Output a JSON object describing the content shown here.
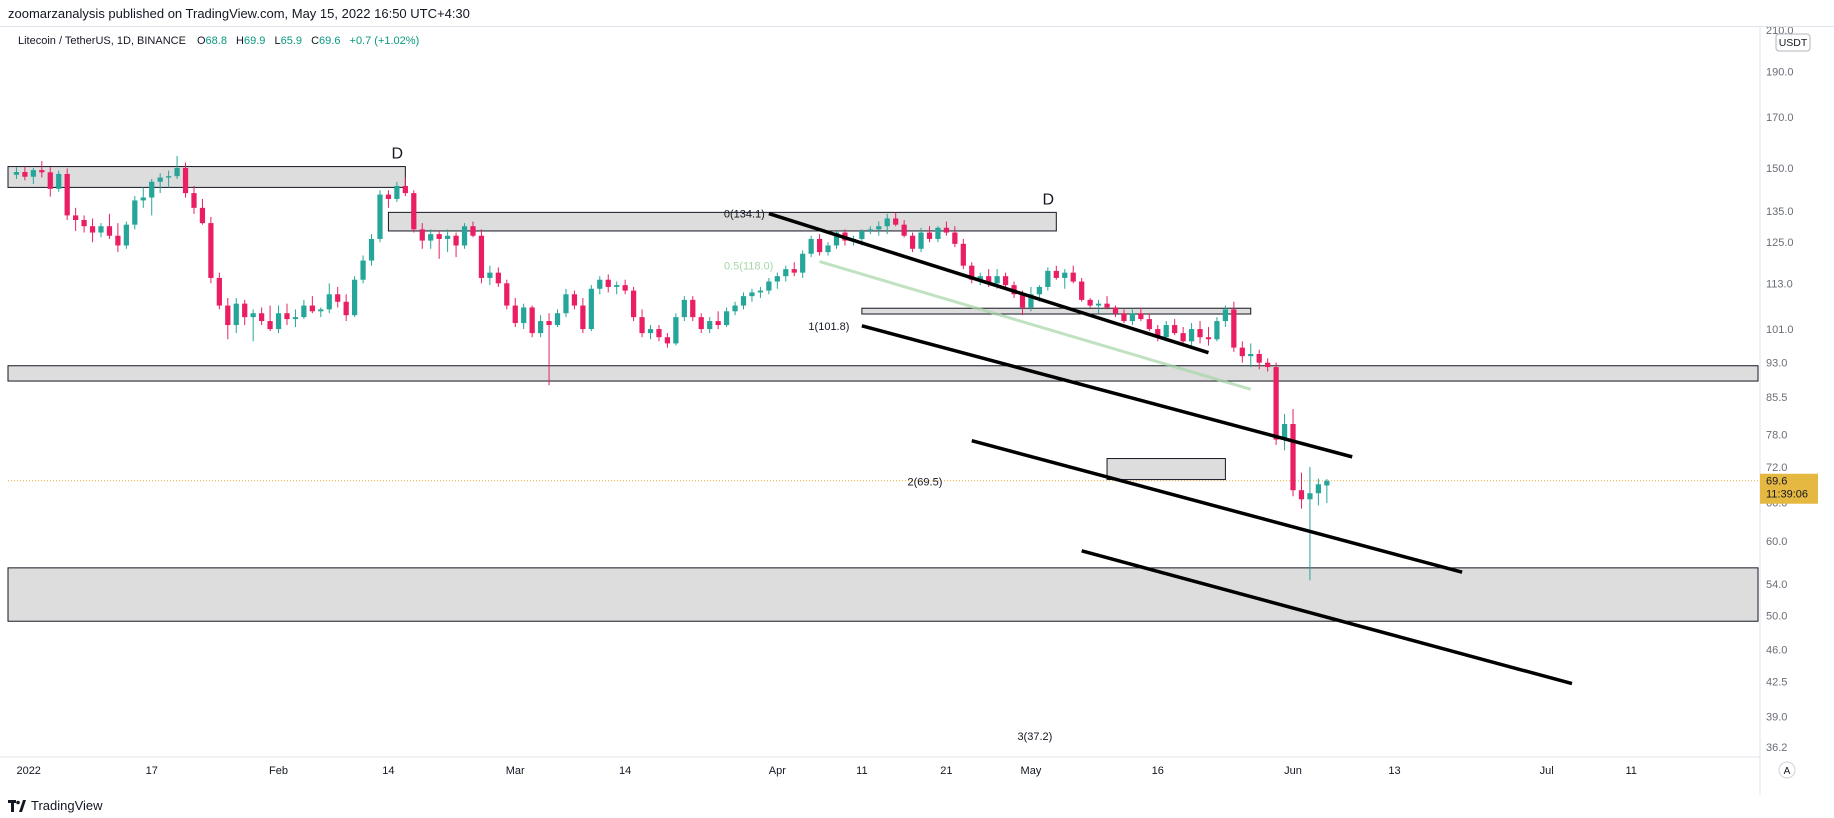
{
  "header": {
    "publish_text": "zoomarzanalysis published on TradingView.com, May 15, 2022 16:50 UTC+4:30"
  },
  "symbol": {
    "name": "Litecoin / TetherUS, 1D, BINANCE",
    "open_label": "O",
    "open": "68.8",
    "high_label": "H",
    "high": "69.9",
    "low_label": "L",
    "low": "65.9",
    "close_label": "C",
    "close": "69.6",
    "change": "+0.7 (+1.02%)"
  },
  "price_axis": {
    "currency": "USDT",
    "current_price": "69.6",
    "countdown": "11:39:06",
    "partial_top_label": "210.0",
    "partial_hidden_label": "66.0"
  },
  "footer": {
    "brand": "TradingView"
  },
  "icons": {
    "logo": "tradingview-logo-icon",
    "auto_scale": "auto-scale-icon"
  },
  "colors": {
    "up": "#26a69a",
    "down": "#ef5350",
    "down_candle": "#e91e63",
    "zone_fill": "#d1d1d1",
    "price_tag": "#e5b841"
  },
  "chart_data": {
    "type": "candlestick",
    "title": "Litecoin / TetherUS, 1D, BINANCE",
    "y_scale": "log",
    "ylim": [
      35.5,
      212
    ],
    "y_ticks": [
      190.0,
      170.0,
      150.0,
      135.0,
      125.0,
      113.0,
      101.0,
      93.0,
      85.5,
      78.0,
      72.0,
      60.0,
      54.0,
      50.0,
      46.0,
      42.5,
      39.0,
      36.2
    ],
    "x_start_date": "2021-12-31",
    "x_end_date": "2022-07-26",
    "x_ticks": [
      {
        "date": "2022-01-01",
        "label": "2022"
      },
      {
        "date": "2022-01-17",
        "label": "17"
      },
      {
        "date": "2022-02-01",
        "label": "Feb"
      },
      {
        "date": "2022-02-14",
        "label": "14"
      },
      {
        "date": "2022-03-01",
        "label": "Mar"
      },
      {
        "date": "2022-03-14",
        "label": "14"
      },
      {
        "date": "2022-04-01",
        "label": "Apr"
      },
      {
        "date": "2022-04-11",
        "label": "11"
      },
      {
        "date": "2022-04-21",
        "label": "21"
      },
      {
        "date": "2022-05-01",
        "label": "May"
      },
      {
        "date": "2022-05-16",
        "label": "16"
      },
      {
        "date": "2022-06-01",
        "label": "Jun"
      },
      {
        "date": "2022-06-13",
        "label": "13"
      },
      {
        "date": "2022-07-01",
        "label": "Jul"
      },
      {
        "date": "2022-07-11",
        "label": "11"
      }
    ],
    "candles": [
      [
        "2022-01-01",
        147.5,
        150.2,
        146.0,
        148.5
      ],
      [
        "2022-01-02",
        148.5,
        150.5,
        145.5,
        146.8
      ],
      [
        "2022-01-03",
        146.8,
        150.0,
        144.2,
        149.2
      ],
      [
        "2022-01-04",
        149.2,
        152.5,
        146.5,
        148.4
      ],
      [
        "2022-01-05",
        148.4,
        150.3,
        139.8,
        142.5
      ],
      [
        "2022-01-06",
        142.5,
        149.0,
        141.5,
        147.8
      ],
      [
        "2022-01-07",
        147.8,
        149.8,
        132.0,
        133.5
      ],
      [
        "2022-01-08",
        133.5,
        136.0,
        128.5,
        132.0
      ],
      [
        "2022-01-09",
        132.0,
        133.5,
        128.0,
        130.0
      ],
      [
        "2022-01-10",
        130.0,
        132.5,
        125.0,
        128.0
      ],
      [
        "2022-01-11",
        128.0,
        131.0,
        126.5,
        130.0
      ],
      [
        "2022-01-12",
        130.0,
        134.0,
        126.0,
        127.0
      ],
      [
        "2022-01-13",
        127.0,
        131.0,
        122.0,
        124.0
      ],
      [
        "2022-01-14",
        124.0,
        131.5,
        123.0,
        130.5
      ],
      [
        "2022-01-15",
        130.5,
        140.0,
        129.0,
        138.5
      ],
      [
        "2022-01-16",
        138.5,
        143.0,
        136.0,
        139.5
      ],
      [
        "2022-01-17",
        139.5,
        146.0,
        133.5,
        145.0
      ],
      [
        "2022-01-18",
        145.0,
        148.0,
        141.0,
        146.5
      ],
      [
        "2022-01-19",
        146.5,
        149.0,
        143.0,
        147.0
      ],
      [
        "2022-01-20",
        147.0,
        154.5,
        146.0,
        150.0
      ],
      [
        "2022-01-21",
        150.0,
        152.0,
        139.5,
        141.0
      ],
      [
        "2022-01-22",
        141.0,
        143.5,
        134.0,
        136.0
      ],
      [
        "2022-01-23",
        136.0,
        139.0,
        130.5,
        131.0
      ],
      [
        "2022-01-24",
        131.0,
        133.0,
        113.0,
        114.5
      ],
      [
        "2022-01-25",
        114.5,
        116.0,
        106.0,
        107.0
      ],
      [
        "2022-01-26",
        107.0,
        109.0,
        98.5,
        102.0
      ],
      [
        "2022-01-27",
        102.0,
        109.0,
        100.0,
        107.5
      ],
      [
        "2022-01-28",
        107.5,
        108.5,
        102.0,
        104.0
      ],
      [
        "2022-01-29",
        104.0,
        106.0,
        98.0,
        105.0
      ],
      [
        "2022-01-30",
        105.0,
        106.5,
        102.0,
        103.0
      ],
      [
        "2022-01-31",
        103.0,
        107.0,
        100.5,
        101.0
      ],
      [
        "2022-02-01",
        101.0,
        107.0,
        100.0,
        105.0
      ],
      [
        "2022-02-02",
        105.0,
        107.5,
        102.0,
        103.5
      ],
      [
        "2022-02-03",
        103.5,
        106.0,
        101.5,
        104.0
      ],
      [
        "2022-02-04",
        104.0,
        108.5,
        103.5,
        107.0
      ],
      [
        "2022-02-05",
        107.0,
        109.5,
        105.0,
        105.5
      ],
      [
        "2022-02-06",
        105.5,
        106.5,
        104.0,
        106.0
      ],
      [
        "2022-02-07",
        106.0,
        113.0,
        105.0,
        110.0
      ],
      [
        "2022-02-08",
        110.0,
        112.0,
        106.5,
        108.0
      ],
      [
        "2022-02-09",
        108.0,
        110.0,
        103.0,
        104.5
      ],
      [
        "2022-02-10",
        104.5,
        115.0,
        104.0,
        114.0
      ],
      [
        "2022-02-11",
        114.0,
        121.0,
        113.0,
        119.5
      ],
      [
        "2022-02-12",
        119.5,
        127.5,
        118.0,
        126.0
      ],
      [
        "2022-02-13",
        126.0,
        142.0,
        125.0,
        140.5
      ],
      [
        "2022-02-14",
        140.5,
        142.0,
        136.0,
        139.0
      ],
      [
        "2022-02-15",
        139.0,
        145.0,
        138.0,
        143.5
      ],
      [
        "2022-02-16",
        143.5,
        146.5,
        140.0,
        141.0
      ],
      [
        "2022-02-17",
        141.0,
        142.0,
        128.0,
        129.0
      ],
      [
        "2022-02-18",
        129.0,
        131.0,
        123.0,
        125.5
      ],
      [
        "2022-02-19",
        125.5,
        129.0,
        123.0,
        127.5
      ],
      [
        "2022-02-20",
        127.5,
        128.5,
        120.0,
        126.0
      ],
      [
        "2022-02-21",
        126.0,
        129.0,
        122.0,
        127.0
      ],
      [
        "2022-02-22",
        127.0,
        128.0,
        120.5,
        124.0
      ],
      [
        "2022-02-23",
        124.0,
        131.0,
        123.0,
        130.0
      ],
      [
        "2022-02-24",
        130.0,
        131.5,
        126.5,
        127.0
      ],
      [
        "2022-02-25",
        127.0,
        129.0,
        113.0,
        114.5
      ],
      [
        "2022-02-26",
        114.5,
        118.0,
        112.5,
        116.0
      ],
      [
        "2022-02-27",
        116.0,
        117.5,
        112.0,
        113.0
      ],
      [
        "2022-02-28",
        113.0,
        114.0,
        106.0,
        107.0
      ],
      [
        "2022-03-01",
        107.0,
        109.0,
        101.5,
        102.5
      ],
      [
        "2022-03-02",
        102.5,
        107.5,
        101.0,
        106.5
      ],
      [
        "2022-03-03",
        106.5,
        107.0,
        99.0,
        100.0
      ],
      [
        "2022-03-04",
        100.0,
        104.5,
        99.0,
        103.0
      ],
      [
        "2022-03-05",
        103.0,
        105.0,
        88.0,
        102.0
      ],
      [
        "2022-03-06",
        102.0,
        106.0,
        101.5,
        105.0
      ],
      [
        "2022-03-07",
        105.0,
        111.5,
        104.0,
        110.0
      ],
      [
        "2022-03-08",
        110.0,
        111.0,
        106.0,
        107.0
      ],
      [
        "2022-03-09",
        107.0,
        109.0,
        100.0,
        101.0
      ],
      [
        "2022-03-10",
        101.0,
        112.5,
        100.5,
        111.5
      ],
      [
        "2022-03-11",
        111.5,
        115.0,
        110.0,
        114.0
      ],
      [
        "2022-03-12",
        114.0,
        115.5,
        110.5,
        112.0
      ],
      [
        "2022-03-13",
        112.0,
        113.5,
        110.0,
        112.5
      ],
      [
        "2022-03-14",
        112.5,
        114.0,
        110.0,
        111.0
      ],
      [
        "2022-03-15",
        111.0,
        112.0,
        103.0,
        104.0
      ],
      [
        "2022-03-16",
        104.0,
        106.0,
        99.0,
        100.0
      ],
      [
        "2022-03-17",
        100.0,
        102.0,
        98.5,
        101.0
      ],
      [
        "2022-03-18",
        101.0,
        102.0,
        98.0,
        99.0
      ],
      [
        "2022-03-19",
        99.0,
        100.0,
        96.5,
        97.5
      ],
      [
        "2022-03-20",
        97.5,
        105.0,
        97.0,
        104.0
      ],
      [
        "2022-03-21",
        104.0,
        109.5,
        103.0,
        108.5
      ],
      [
        "2022-03-22",
        108.5,
        109.5,
        103.0,
        104.0
      ],
      [
        "2022-03-23",
        104.0,
        105.0,
        100.0,
        101.0
      ],
      [
        "2022-03-24",
        101.0,
        104.0,
        100.0,
        103.0
      ],
      [
        "2022-03-25",
        103.0,
        105.5,
        101.0,
        102.0
      ],
      [
        "2022-03-26",
        102.0,
        106.5,
        101.5,
        105.5
      ],
      [
        "2022-03-27",
        105.5,
        108.0,
        104.5,
        107.0
      ],
      [
        "2022-03-28",
        107.0,
        110.5,
        106.0,
        109.5
      ],
      [
        "2022-03-29",
        109.5,
        111.5,
        108.0,
        110.5
      ],
      [
        "2022-03-30",
        110.5,
        112.0,
        109.0,
        111.0
      ],
      [
        "2022-03-31",
        111.0,
        114.5,
        110.0,
        113.5
      ],
      [
        "2022-04-01",
        113.5,
        116.0,
        111.5,
        115.0
      ],
      [
        "2022-04-02",
        115.0,
        118.0,
        113.5,
        117.0
      ],
      [
        "2022-04-03",
        117.0,
        119.0,
        115.0,
        116.0
      ],
      [
        "2022-04-04",
        116.0,
        122.5,
        114.5,
        121.5
      ],
      [
        "2022-04-05",
        121.5,
        127.0,
        120.5,
        126.0
      ],
      [
        "2022-04-06",
        126.0,
        127.5,
        121.0,
        122.0
      ],
      [
        "2022-04-07",
        122.0,
        125.0,
        121.0,
        124.0
      ],
      [
        "2022-04-08",
        124.0,
        128.5,
        123.0,
        128.0
      ],
      [
        "2022-04-09",
        128.0,
        129.0,
        124.0,
        125.5
      ],
      [
        "2022-04-10",
        125.5,
        127.0,
        124.0,
        126.0
      ],
      [
        "2022-04-11",
        126.0,
        129.0,
        124.0,
        128.5
      ],
      [
        "2022-04-12",
        128.5,
        130.0,
        127.5,
        129.0
      ],
      [
        "2022-04-13",
        129.0,
        131.5,
        127.0,
        130.0
      ],
      [
        "2022-04-14",
        130.0,
        134.0,
        127.5,
        132.5
      ],
      [
        "2022-04-15",
        132.5,
        134.5,
        130.0,
        130.5
      ],
      [
        "2022-04-16",
        130.5,
        132.0,
        126.5,
        127.0
      ],
      [
        "2022-04-17",
        127.0,
        128.0,
        122.0,
        123.0
      ],
      [
        "2022-04-18",
        123.0,
        129.5,
        122.0,
        128.0
      ],
      [
        "2022-04-19",
        128.0,
        130.0,
        125.0,
        126.0
      ],
      [
        "2022-04-20",
        126.0,
        130.0,
        125.0,
        129.5
      ],
      [
        "2022-04-21",
        129.5,
        131.5,
        127.0,
        128.0
      ],
      [
        "2022-04-22",
        128.0,
        130.0,
        123.5,
        124.5
      ],
      [
        "2022-04-23",
        124.5,
        126.0,
        117.0,
        118.0
      ],
      [
        "2022-04-24",
        118.0,
        119.0,
        113.0,
        114.0
      ],
      [
        "2022-04-25",
        114.0,
        116.0,
        112.5,
        115.0
      ],
      [
        "2022-04-26",
        115.0,
        117.0,
        112.0,
        113.0
      ],
      [
        "2022-04-27",
        113.0,
        117.0,
        111.5,
        115.0
      ],
      [
        "2022-04-28",
        115.0,
        116.0,
        112.0,
        112.5
      ],
      [
        "2022-04-29",
        112.5,
        113.5,
        109.0,
        110.0
      ],
      [
        "2022-04-30",
        110.0,
        111.0,
        104.5,
        106.5
      ],
      [
        "2022-05-01",
        106.5,
        112.0,
        105.5,
        110.0
      ],
      [
        "2022-05-02",
        110.0,
        112.5,
        108.0,
        112.0
      ],
      [
        "2022-05-03",
        112.0,
        117.5,
        111.0,
        116.5
      ],
      [
        "2022-05-04",
        116.5,
        118.0,
        114.0,
        114.5
      ],
      [
        "2022-05-05",
        114.5,
        117.0,
        111.5,
        116.0
      ],
      [
        "2022-05-06",
        116.0,
        118.0,
        113.0,
        113.5
      ],
      [
        "2022-05-07",
        113.5,
        114.5,
        108.0,
        108.5
      ],
      [
        "2022-05-08",
        108.5,
        109.0,
        106.5,
        107.0
      ],
      [
        "2022-05-09",
        107.0,
        108.5,
        105.0,
        107.5
      ],
      [
        "2022-05-10",
        107.5,
        109.5,
        106.0,
        106.5
      ],
      [
        "2022-05-11",
        106.5,
        107.0,
        104.0,
        105.0
      ],
      [
        "2022-05-12",
        105.0,
        106.0,
        102.5,
        103.0
      ],
      [
        "2022-05-13",
        103.0,
        106.0,
        102.0,
        105.0
      ],
      [
        "2022-05-14",
        105.0,
        106.5,
        103.0,
        103.5
      ],
      [
        "2022-05-15",
        103.5,
        105.0,
        100.5,
        101.0
      ],
      [
        "2022-05-16",
        101.0,
        102.0,
        98.0,
        99.0
      ],
      [
        "2022-05-17",
        99.0,
        103.0,
        98.0,
        102.0
      ],
      [
        "2022-05-18",
        102.0,
        103.5,
        99.5,
        100.0
      ],
      [
        "2022-05-19",
        100.0,
        101.5,
        97.0,
        98.0
      ],
      [
        "2022-05-20",
        98.0,
        102.5,
        97.0,
        101.0
      ],
      [
        "2022-05-21",
        101.0,
        103.0,
        97.5,
        99.0
      ],
      [
        "2022-05-22",
        99.0,
        101.5,
        97.0,
        98.5
      ],
      [
        "2022-05-23",
        98.5,
        104.0,
        98.0,
        103.0
      ],
      [
        "2022-05-24",
        103.0,
        107.0,
        101.5,
        106.0
      ],
      [
        "2022-05-25",
        106.0,
        108.0,
        95.5,
        96.5
      ],
      [
        "2022-05-26",
        96.5,
        98.0,
        93.0,
        94.5
      ],
      [
        "2022-05-27",
        94.5,
        97.5,
        92.0,
        95.0
      ],
      [
        "2022-05-28",
        95.0,
        96.0,
        91.5,
        93.0
      ],
      [
        "2022-05-29",
        93.0,
        94.0,
        91.0,
        92.0
      ],
      [
        "2022-05-30",
        92.0,
        93.0,
        76.0,
        77.0
      ],
      [
        "2022-05-31",
        77.0,
        82.0,
        75.0,
        80.0
      ],
      [
        "2022-06-01",
        80.0,
        83.0,
        67.0,
        68.0
      ],
      [
        "2022-06-02",
        68.0,
        71.0,
        65.0,
        66.5
      ],
      [
        "2022-06-03",
        66.5,
        72.0,
        54.5,
        67.5
      ],
      [
        "2022-06-04",
        67.5,
        70.0,
        65.5,
        69.0
      ],
      [
        "2022-06-05",
        68.8,
        69.9,
        65.9,
        69.6
      ]
    ],
    "zones": [
      {
        "from": "2021-12-31",
        "to": "2022-02-16",
        "low": 143.0,
        "high": 150.5,
        "label": "D"
      },
      {
        "from": "2022-02-14",
        "to": "2022-05-04",
        "low": 128.5,
        "high": 134.5,
        "label": "D"
      },
      {
        "from": "2022-04-11",
        "to": "2022-05-27",
        "low": 104.8,
        "high": 106.3,
        "label": ""
      },
      {
        "from": "2021-12-31",
        "to": "2022-07-26",
        "low": 88.9,
        "high": 92.3,
        "label": ""
      },
      {
        "from": "2022-05-10",
        "to": "2022-05-24",
        "low": 69.8,
        "high": 73.5,
        "label": ""
      },
      {
        "from": "2021-12-31",
        "to": "2022-07-26",
        "low": 49.3,
        "high": 56.2,
        "label": ""
      }
    ],
    "fib_labels": [
      {
        "date": "2022-03-31",
        "price": 134.1,
        "text": "0(134.1)"
      },
      {
        "date": "2022-04-01",
        "price": 118.0,
        "text": "0.5(118.0)"
      },
      {
        "date": "2022-04-10",
        "price": 101.8,
        "text": "1(101.8)"
      },
      {
        "date": "2022-04-21",
        "price": 69.5,
        "text": "2(69.5)"
      },
      {
        "date": "2022-05-04",
        "price": 37.2,
        "text": "3(37.2)"
      }
    ],
    "trendlines": [
      {
        "from": [
          "2022-03-31",
          134.1
        ],
        "to": [
          "2022-05-22",
          95.3
        ],
        "style": "channel"
      },
      {
        "from": [
          "2022-04-11",
          101.8
        ],
        "to": [
          "2022-06-08",
          73.8
        ],
        "style": "channel"
      },
      {
        "from": [
          "2022-04-24",
          76.8
        ],
        "to": [
          "2022-06-21",
          55.6
        ],
        "style": "channel"
      },
      {
        "from": [
          "2022-05-07",
          58.6
        ],
        "to": [
          "2022-07-04",
          42.3
        ],
        "style": "channel"
      },
      {
        "from": [
          "2022-04-06",
          119.2
        ],
        "to": [
          "2022-05-27",
          87.1
        ],
        "style": "faded"
      }
    ],
    "last_price": 69.6
  }
}
